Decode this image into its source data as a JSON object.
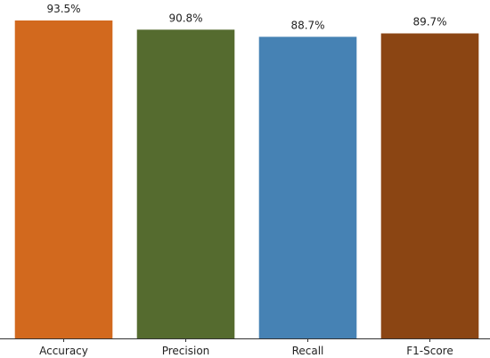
{
  "chart_data": {
    "type": "bar",
    "categories": [
      "Accuracy",
      "Precision",
      "Recall",
      "F1-Score"
    ],
    "values": [
      93.5,
      90.8,
      88.7,
      89.7
    ],
    "value_labels": [
      "93.5%",
      "90.8%",
      "88.7%",
      "89.7%"
    ],
    "colors": [
      "#D2691E",
      "#556B2F",
      "#4682B4",
      "#8B4513"
    ],
    "title": "",
    "xlabel": "",
    "ylabel": "",
    "ylim": [
      0,
      93.5
    ],
    "grid": false,
    "legend": "none"
  }
}
